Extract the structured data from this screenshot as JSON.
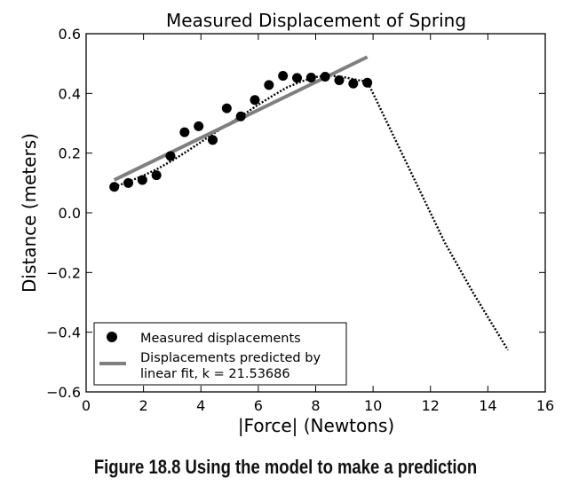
{
  "caption": "Figure 18.8  Using the model to make a prediction",
  "chart_data": {
    "type": "scatter",
    "title": "Measured Displacement of Spring",
    "xlabel": "|Force| (Newtons)",
    "ylabel": "Distance (meters)",
    "xlim": [
      0,
      16
    ],
    "ylim": [
      -0.6,
      0.6
    ],
    "xticks": [
      "0",
      "2",
      "4",
      "6",
      "8",
      "10",
      "12",
      "14",
      "16"
    ],
    "yticks": [
      "0.6",
      "0.4",
      "0.2",
      "0.0",
      "−0.2",
      "−0.4",
      "−0.6"
    ],
    "grid": false,
    "legend_position": "lower-left",
    "series": [
      {
        "name": "Measured displacements",
        "style": "points",
        "color": "#000000",
        "x": [
          0.98,
          1.47,
          1.96,
          2.45,
          2.94,
          3.43,
          3.92,
          4.41,
          4.9,
          5.39,
          5.88,
          6.37,
          6.86,
          7.35,
          7.84,
          8.33,
          8.82,
          9.31,
          9.8
        ],
        "y": [
          0.087,
          0.1,
          0.11,
          0.126,
          0.19,
          0.27,
          0.29,
          0.244,
          0.35,
          0.323,
          0.378,
          0.428,
          0.459,
          0.452,
          0.453,
          0.456,
          0.444,
          0.433,
          0.436
        ]
      },
      {
        "name": "Displacements predicted by linear fit, k = 21.53686",
        "style": "line",
        "color": "#7f7f7f",
        "x": [
          0.98,
          9.8
        ],
        "y": [
          0.11,
          0.522
        ]
      },
      {
        "name": "",
        "style": "dotted-curve",
        "color": "#000000",
        "x": [
          0.98,
          1.5,
          2,
          2.5,
          3,
          3.5,
          4,
          4.5,
          5,
          5.5,
          6,
          6.5,
          7,
          7.5,
          8,
          8.5,
          9,
          9.5,
          9.8,
          10.5,
          11.5,
          12.5,
          13.5,
          14.7
        ],
        "y": [
          0.087,
          0.105,
          0.125,
          0.148,
          0.175,
          0.205,
          0.237,
          0.269,
          0.3,
          0.33,
          0.362,
          0.392,
          0.42,
          0.44,
          0.455,
          0.46,
          0.454,
          0.444,
          0.44,
          0.3,
          0.1,
          -0.1,
          -0.27,
          -0.46
        ]
      }
    ],
    "legend": [
      {
        "marker": "point",
        "lines": [
          "Measured displacements"
        ]
      },
      {
        "marker": "line",
        "lines": [
          "Displacements predicted by",
          "linear fit, k = 21.53686"
        ]
      }
    ]
  }
}
